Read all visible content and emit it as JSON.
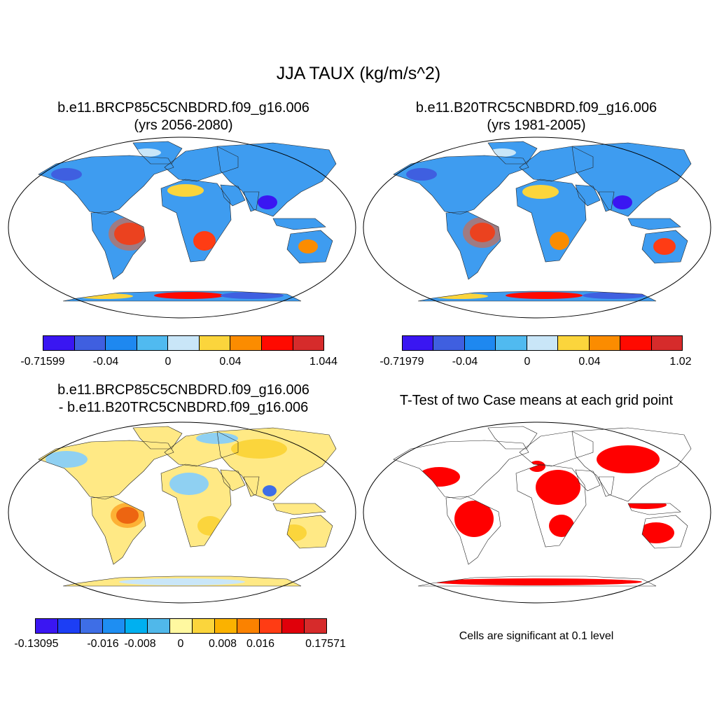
{
  "title": "JJA TAUX (kg/m/s^2)",
  "panels": [
    {
      "line1": "b.e11.BRCP85C5CNBDRD.f09_g16.006",
      "line2": "(yrs 2056-2080)"
    },
    {
      "line1": "b.e11.B20TRC5CNBDRD.f09_g16.006",
      "line2": "(yrs 1981-2005)"
    },
    {
      "line1": "b.e11.BRCP85C5CNBDRD.f09_g16.006",
      "line2": "- b.e11.B20TRC5CNBDRD.f09_g16.006"
    },
    {
      "line1": "T-Test of two Case means at each grid point"
    }
  ],
  "colorbars": [
    {
      "colors": [
        "#3a16f2",
        "#3f5fe0",
        "#1e88f0",
        "#50baf0",
        "#c9e6f8",
        "#fbd53c",
        "#fb8c00",
        "#ff0a00",
        "#d62b2b"
      ],
      "labels": [
        "-0.71599",
        "-0.04",
        "0",
        "0.04",
        "1.044"
      ]
    },
    {
      "colors": [
        "#3a16f2",
        "#3f5fe0",
        "#1e88f0",
        "#50baf0",
        "#c9e6f8",
        "#fbd53c",
        "#fb8c00",
        "#ff0a00",
        "#d62b2b"
      ],
      "labels": [
        "-0.71979",
        "-0.04",
        "0",
        "0.04",
        "1.02"
      ]
    },
    {
      "colors": [
        "#3a16f2",
        "#1c3ef5",
        "#3e6ee6",
        "#1e8ef2",
        "#00b0f0",
        "#50b8ea",
        "#fff8a0",
        "#fbd53c",
        "#fbb200",
        "#fb8200",
        "#ff3c14",
        "#e0000a",
        "#d62b2b"
      ],
      "labels": [
        "-0.13095",
        "-0.016",
        "-0.008",
        "0",
        "0.008",
        "0.016",
        "0.17571"
      ]
    }
  ],
  "significance": {
    "note": "Cells are significant at 0.1 level",
    "color": "#ff0000"
  }
}
